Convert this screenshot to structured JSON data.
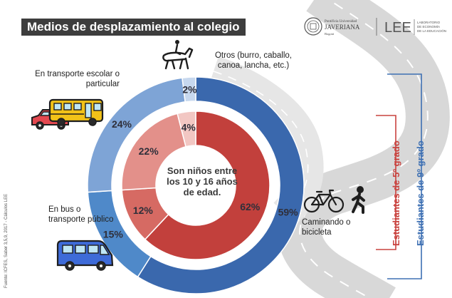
{
  "title": "Medios de desplazamiento al colegio",
  "logos": {
    "javeriana": [
      "Pontificia Universidad",
      "JAVERIANA",
      "Bogotá"
    ],
    "lee": [
      "LEE",
      "LABORATORIO",
      "DE ECONOMÍA",
      "DE LA EDUCACIÓN"
    ]
  },
  "source": "Fuente: ICFES, Saber 3,5,9, 2017 - Cálculos LEE",
  "center_note": "Son niños entre los 10 y 16 años de edad.",
  "category_labels": {
    "otros": "Otros (burro, caballo, canoa, lancha, etc.)",
    "escolar": "En transporte escolar o particular",
    "bus": "En bus o transporte público",
    "caminando": "Caminando o bicicleta"
  },
  "legend": {
    "grade5": "Estudiantes de 5º grado",
    "grade9": "Estudiantes de 9º grado"
  },
  "colors": {
    "grade5": "#c9433f",
    "grade9": "#3e70b3",
    "title_bg": "#3d3d3d"
  },
  "icons": [
    "horse-rider-icon",
    "car-icon",
    "school-bus-icon",
    "bicycle-icon",
    "walking-person-icon",
    "van-icon"
  ],
  "chart_data": {
    "type": "pie",
    "categories": [
      "Caminando o bicicleta",
      "En bus o transporte público",
      "En transporte escolar o particular",
      "Otros (burro, caballo, canoa, lancha, etc.)"
    ],
    "series": [
      {
        "name": "Estudiantes de 5º grado",
        "values": [
          62,
          12,
          22,
          4
        ],
        "labels": [
          "62%",
          "12%",
          "22%",
          "4%"
        ]
      },
      {
        "name": "Estudiantes de 9º grado",
        "values": [
          59,
          15,
          24,
          2
        ],
        "labels": [
          "59%",
          "15%",
          "24%",
          "2%"
        ]
      }
    ]
  }
}
